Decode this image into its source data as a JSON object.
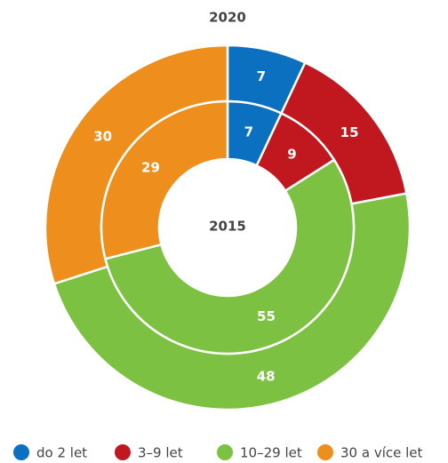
{
  "chart_data": {
    "type": "donut",
    "categories": [
      "do 2 let",
      "3–9 let",
      "10–29 let",
      "30 a více let"
    ],
    "colors": [
      "#0a70bf",
      "#c1171f",
      "#7dc142",
      "#ee8f1d"
    ],
    "series": [
      {
        "name": "2020",
        "values": [
          7,
          15,
          48,
          30
        ]
      },
      {
        "name": "2015",
        "values": [
          7,
          9,
          55,
          29
        ]
      }
    ]
  }
}
